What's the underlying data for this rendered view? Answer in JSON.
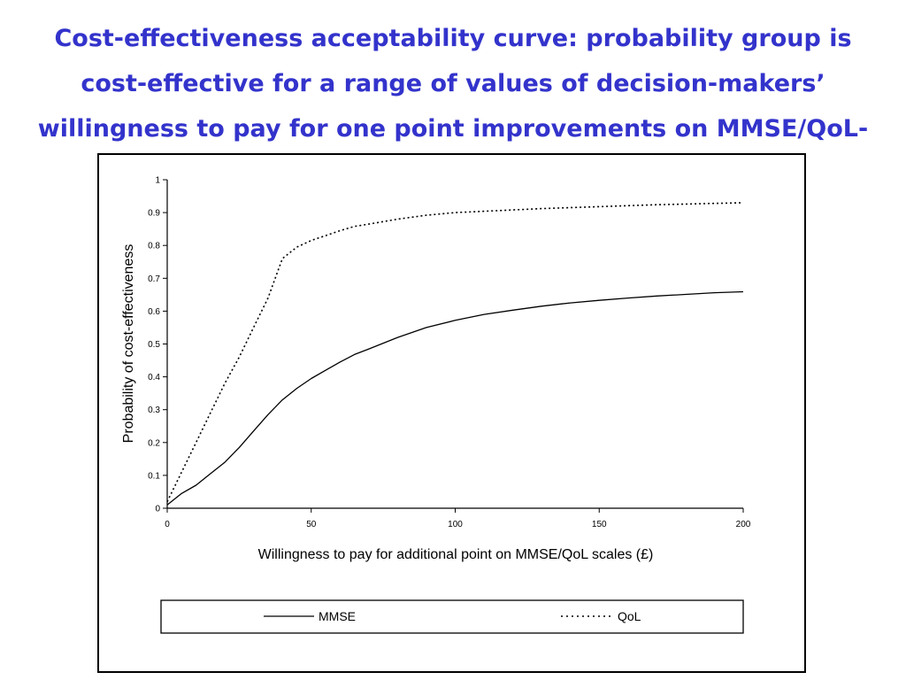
{
  "slide": {
    "title_main": "Cost-effectiveness acceptability curve: probability group is cost-effective for a range of values of decision-makers’ willingness to pay for one point improvements on MMSE/QoL-AD",
    "title_period": "."
  },
  "colors": {
    "title": "#3333cc",
    "lines": "#000000"
  },
  "chart_data": {
    "type": "line",
    "title": "",
    "xlabel": "Willingness to pay for additional point on MMSE/QoL scales (£)",
    "ylabel": "Probability of cost-effectiveness",
    "xlim": [
      0,
      200
    ],
    "ylim": [
      0,
      1
    ],
    "x_ticks": [
      "0",
      "50",
      "100",
      "150",
      "200"
    ],
    "y_ticks": [
      "0",
      "0.1",
      "0.2",
      "0.3",
      "0.4",
      "0.5",
      "0.6",
      "0.7",
      "0.8",
      "0.9",
      "1"
    ],
    "grid": false,
    "legend_position": "bottom",
    "x": [
      0,
      5,
      10,
      15,
      20,
      25,
      30,
      35,
      40,
      45,
      50,
      55,
      60,
      65,
      70,
      80,
      90,
      100,
      110,
      120,
      130,
      140,
      150,
      160,
      170,
      180,
      190,
      200
    ],
    "series": [
      {
        "name": "MMSE",
        "style": "solid",
        "values": [
          0.01,
          0.045,
          0.07,
          0.105,
          0.14,
          0.185,
          0.235,
          0.285,
          0.33,
          0.365,
          0.395,
          0.42,
          0.445,
          0.468,
          0.485,
          0.52,
          0.55,
          0.572,
          0.59,
          0.603,
          0.615,
          0.625,
          0.633,
          0.64,
          0.646,
          0.651,
          0.656,
          0.659
        ]
      },
      {
        "name": "QoL",
        "style": "dotted",
        "values": [
          0.02,
          0.11,
          0.2,
          0.29,
          0.38,
          0.46,
          0.55,
          0.64,
          0.76,
          0.795,
          0.815,
          0.83,
          0.845,
          0.858,
          0.865,
          0.88,
          0.892,
          0.9,
          0.904,
          0.908,
          0.912,
          0.915,
          0.918,
          0.921,
          0.924,
          0.926,
          0.928,
          0.93
        ]
      }
    ]
  }
}
